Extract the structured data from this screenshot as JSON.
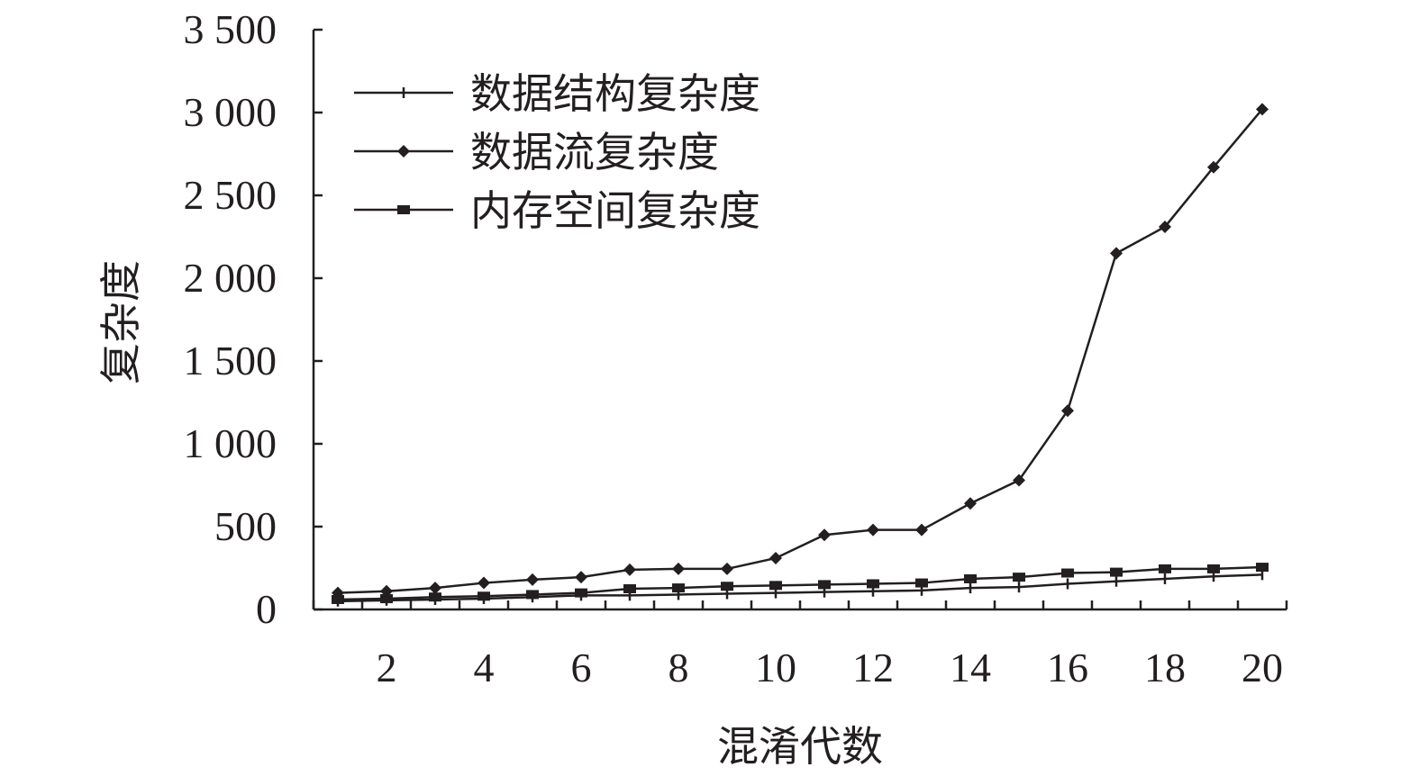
{
  "chart_data": {
    "type": "line",
    "xlabel": "混淆代数",
    "ylabel": "复杂度",
    "x": [
      1,
      2,
      3,
      4,
      5,
      6,
      7,
      8,
      9,
      10,
      11,
      12,
      13,
      14,
      15,
      16,
      17,
      18,
      19,
      20
    ],
    "xlim": [
      0.5,
      20.5
    ],
    "ylim": [
      0,
      3500
    ],
    "x_tick_labels": [
      "2",
      "4",
      "6",
      "8",
      "10",
      "12",
      "14",
      "16",
      "18",
      "20"
    ],
    "x_tick_values": [
      2,
      4,
      6,
      8,
      10,
      12,
      14,
      16,
      18,
      20
    ],
    "y_tick_labels": [
      "0",
      "500",
      "1 000",
      "1 500",
      "2 000",
      "2 500",
      "3 000",
      "3 500"
    ],
    "y_tick_values": [
      0,
      500,
      1000,
      1500,
      2000,
      2500,
      3000,
      3500
    ],
    "grid": false,
    "legend_position": "top-left",
    "series": [
      {
        "name": "数据结构复杂度",
        "marker": "plus",
        "color": "#231f20",
        "values": [
          50,
          55,
          60,
          65,
          75,
          85,
          85,
          90,
          95,
          100,
          105,
          110,
          115,
          130,
          135,
          155,
          170,
          185,
          200,
          210
        ]
      },
      {
        "name": "数据流复杂度",
        "marker": "diamond",
        "color": "#231f20",
        "values": [
          100,
          110,
          130,
          160,
          180,
          195,
          240,
          245,
          245,
          310,
          450,
          480,
          480,
          640,
          780,
          1200,
          2150,
          2310,
          2670,
          3020
        ]
      },
      {
        "name": "内存空间复杂度",
        "marker": "square",
        "color": "#231f20",
        "values": [
          60,
          65,
          75,
          80,
          90,
          100,
          125,
          130,
          140,
          145,
          150,
          155,
          160,
          185,
          195,
          220,
          225,
          245,
          245,
          255
        ]
      }
    ]
  }
}
